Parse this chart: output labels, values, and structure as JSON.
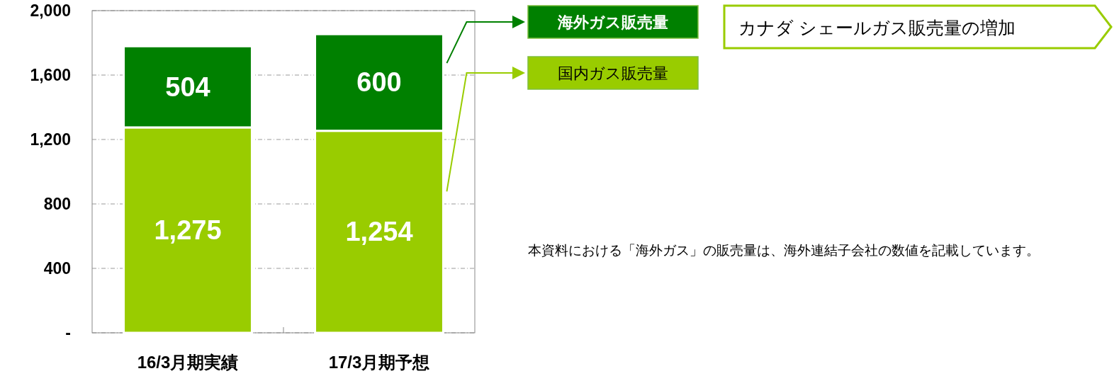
{
  "chart_data": {
    "type": "bar",
    "stacked": true,
    "categories": [
      "16/3月期実績",
      "17/3月期予想"
    ],
    "series": [
      {
        "name": "国内ガス販売量",
        "color": "#99cc00",
        "values": [
          1275,
          1254
        ],
        "value_labels": [
          "1,275",
          "1,254"
        ]
      },
      {
        "name": "海外ガス販売量",
        "color": "#008000",
        "values": [
          504,
          600
        ],
        "value_labels": [
          "504",
          "600"
        ]
      }
    ],
    "ylim": [
      0,
      2000
    ],
    "yticks": [
      {
        "value": 0,
        "label": "-"
      },
      {
        "value": 400,
        "label": "400"
      },
      {
        "value": 800,
        "label": "800"
      },
      {
        "value": 1200,
        "label": "1,200"
      },
      {
        "value": 1600,
        "label": "1,600"
      },
      {
        "value": 2000,
        "label": "2,000"
      }
    ],
    "grid": "y",
    "legend": "right",
    "annotations": [
      "カナダ シェールガス販売量の増加",
      "本資料における「海外ガス」の販売量は、海外連結子会社の数値を記載しています。"
    ]
  }
}
